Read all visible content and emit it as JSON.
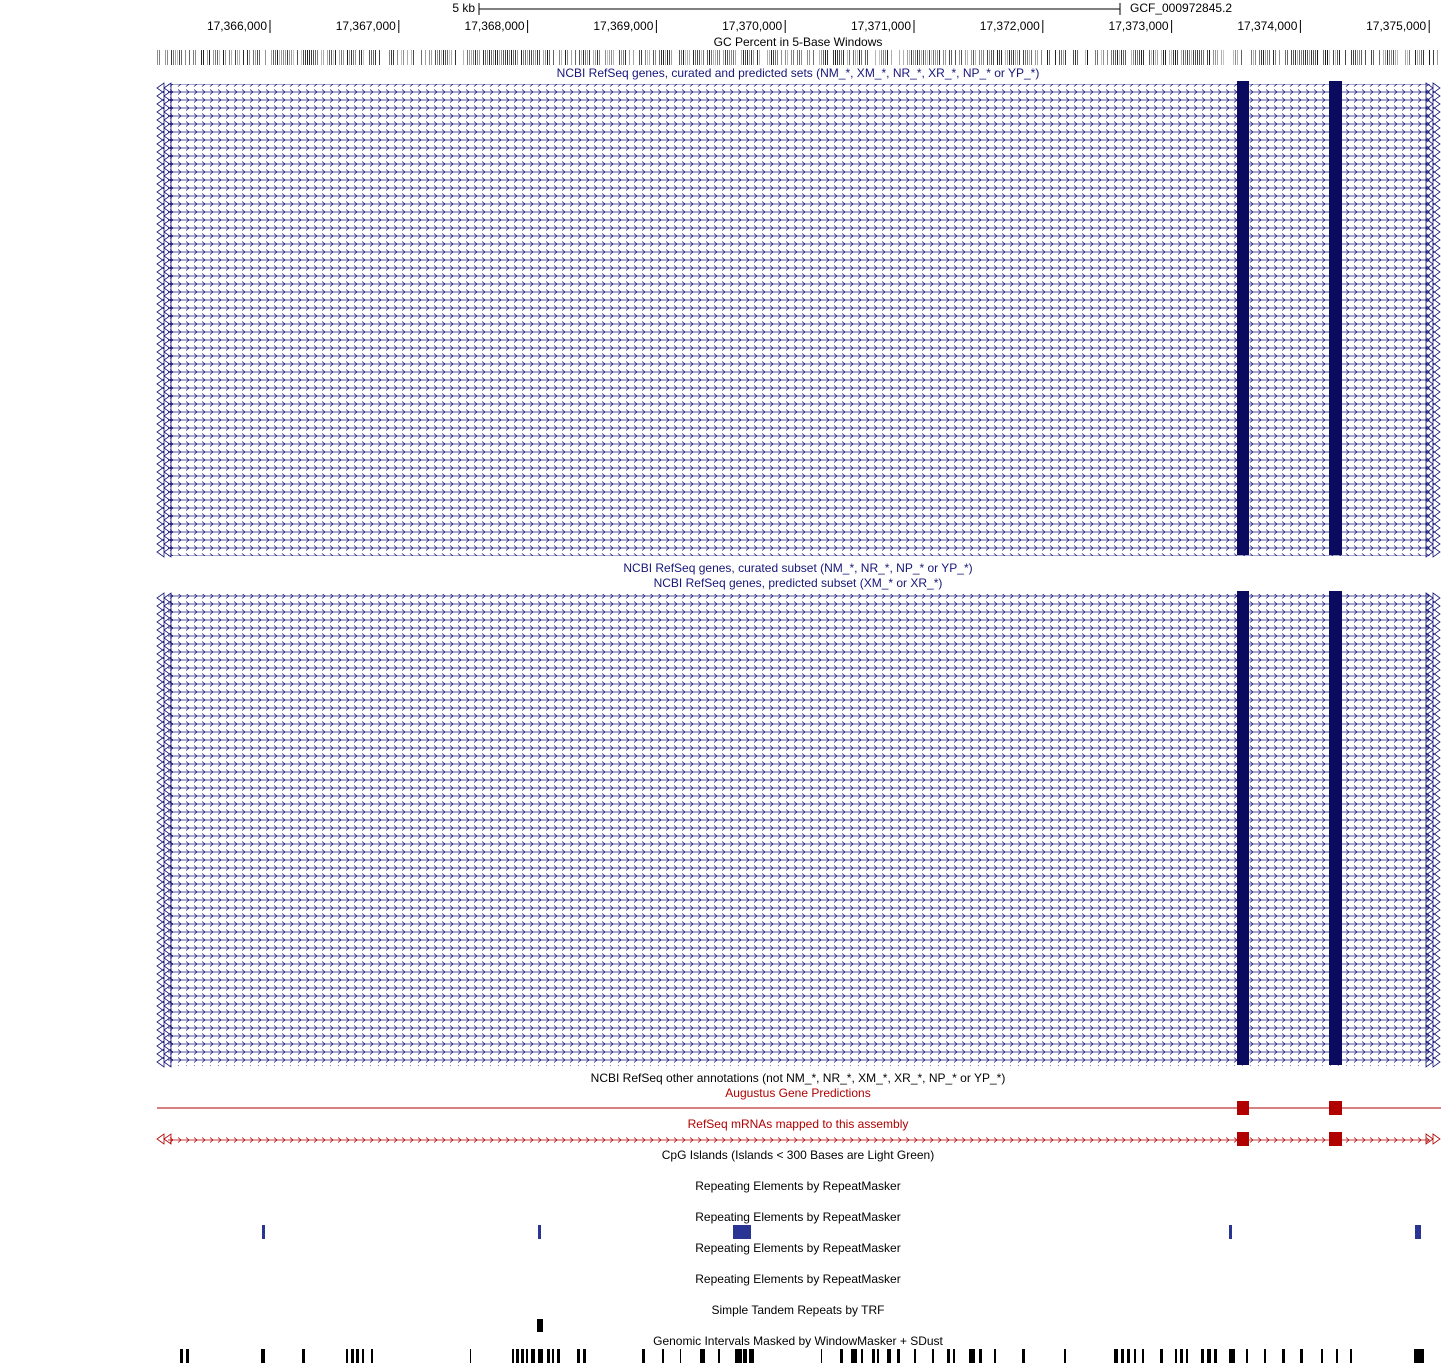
{
  "header": {
    "scale_label": "5 kb",
    "assembly": "GCF_000972845.2"
  },
  "ruler": {
    "ticks": [
      "17,366,000",
      "17,367,000",
      "17,368,000",
      "17,369,000",
      "17,370,000",
      "17,371,000",
      "17,372,000",
      "17,373,000",
      "17,374,000",
      "17,375,000"
    ]
  },
  "tracks": {
    "gc_percent": "GC Percent in 5-Base Windows",
    "refseq_all": "NCBI RefSeq genes, curated and predicted sets (NM_*, XM_*, NR_*, XR_*, NP_* or YP_*)",
    "refseq_curated": "NCBI RefSeq genes, curated subset (NM_*, NR_*, NP_* or YP_*)",
    "refseq_predicted": "NCBI RefSeq genes, predicted subset (XM_* or XR_*)",
    "refseq_other": "NCBI RefSeq other annotations (not NM_*, NR_*, XM_*, XR_*, NP_* or YP_*)",
    "augustus": "Augustus Gene Predictions",
    "refseq_mrna": "RefSeq mRNAs mapped to this assembly",
    "cpg": "CpG Islands (Islands < 300 Bases are Light Green)",
    "repeatmasker": [
      "Repeating Elements by RepeatMasker",
      "Repeating Elements by RepeatMasker",
      "Repeating Elements by RepeatMasker",
      "Repeating Elements by RepeatMasker"
    ],
    "trf": "Simple Tandem Repeats by TRF",
    "windowmasker": "Genomic Intervals Masked by WindowMasker + SDust"
  }
}
